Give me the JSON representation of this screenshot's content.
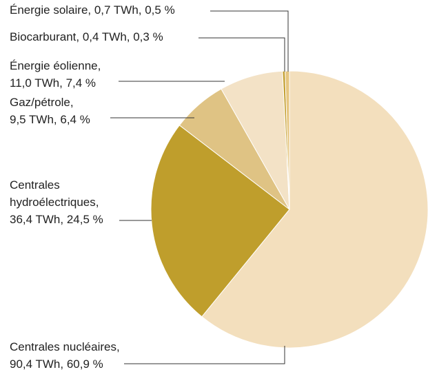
{
  "chart_data": {
    "type": "pie",
    "labels": [
      [
        "Centrales nucléaires,",
        "90,4 TWh, 60,9 %"
      ],
      [
        "Centrales",
        "hydroélectriques,",
        "36,4 TWh, 24,5 %"
      ],
      [
        "Gaz/pétrole,",
        "9,5 TWh, 6,4 %"
      ],
      [
        "Énergie éolienne,",
        "11,0 TWh, 7,4 %"
      ],
      [
        "Biocarburant, 0,4 TWh, 0,3 %"
      ],
      [
        "Énergie solaire, 0,7 TWh, 0,5 %"
      ]
    ],
    "values": [
      60.9,
      24.5,
      6.4,
      7.4,
      0.3,
      0.5
    ],
    "colors": [
      "#f3dfbd",
      "#bf9e2c",
      "#dfc384",
      "#f3e2c6",
      "#c4a032",
      "#e6c680"
    ]
  }
}
